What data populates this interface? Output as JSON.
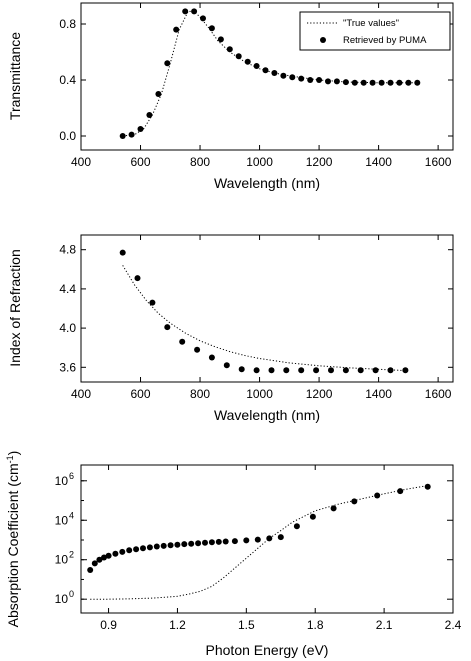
{
  "chart_data": [
    {
      "type": "scatter",
      "xlabel": "Wavelength (nm)",
      "ylabel": "Transmittance",
      "xlim": [
        400,
        1650
      ],
      "ylim": [
        -0.1,
        0.95
      ],
      "xticks": [
        400,
        600,
        800,
        1000,
        1200,
        1400,
        1600
      ],
      "yticks": [
        0.0,
        0.4,
        0.8
      ],
      "ytick_labels": [
        "0.0",
        "0.4",
        "0.8"
      ],
      "legend": {
        "placement": "top-right",
        "entries": [
          "\"True values\"",
          "Retrieved by PUMA"
        ]
      },
      "series": [
        {
          "name": "\"True values\"",
          "style": "dotted-line",
          "x": [
            540,
            580,
            610,
            640,
            670,
            700,
            730,
            760,
            780,
            800,
            830,
            860,
            900,
            950,
            1000,
            1050,
            1100,
            1200,
            1300,
            1400,
            1530
          ],
          "y": [
            0.0,
            0.01,
            0.05,
            0.15,
            0.3,
            0.52,
            0.76,
            0.89,
            0.89,
            0.85,
            0.77,
            0.68,
            0.6,
            0.53,
            0.48,
            0.45,
            0.43,
            0.4,
            0.385,
            0.38,
            0.38
          ]
        },
        {
          "name": "Retrieved by PUMA",
          "style": "filled-circles",
          "x": [
            540,
            570,
            600,
            630,
            660,
            690,
            720,
            750,
            780,
            810,
            840,
            870,
            900,
            930,
            960,
            990,
            1020,
            1050,
            1080,
            1110,
            1140,
            1170,
            1200,
            1230,
            1260,
            1290,
            1320,
            1350,
            1380,
            1410,
            1440,
            1470,
            1500,
            1530
          ],
          "y": [
            0.0,
            0.01,
            0.05,
            0.15,
            0.3,
            0.52,
            0.76,
            0.89,
            0.89,
            0.84,
            0.77,
            0.69,
            0.62,
            0.57,
            0.53,
            0.5,
            0.47,
            0.45,
            0.43,
            0.42,
            0.41,
            0.4,
            0.4,
            0.39,
            0.39,
            0.385,
            0.38,
            0.38,
            0.38,
            0.38,
            0.38,
            0.38,
            0.38,
            0.38
          ]
        }
      ]
    },
    {
      "type": "scatter",
      "xlabel": "Wavelength (nm)",
      "ylabel": "Index of Refraction",
      "xlim": [
        400,
        1650
      ],
      "ylim": [
        3.45,
        4.95
      ],
      "xticks": [
        400,
        600,
        800,
        1000,
        1200,
        1400,
        1600
      ],
      "yticks": [
        3.6,
        4.0,
        4.4,
        4.8
      ],
      "ytick_labels": [
        "3.6",
        "4.0",
        "4.4",
        "4.8"
      ],
      "series": [
        {
          "name": "\"True values\"",
          "style": "dotted-line",
          "x": [
            540,
            580,
            620,
            660,
            700,
            750,
            800,
            850,
            900,
            950,
            1000,
            1100,
            1200,
            1300,
            1400,
            1500
          ],
          "y": [
            4.64,
            4.44,
            4.28,
            4.15,
            4.05,
            3.95,
            3.87,
            3.81,
            3.76,
            3.72,
            3.69,
            3.645,
            3.615,
            3.595,
            3.58,
            3.565
          ]
        },
        {
          "name": "Retrieved by PUMA",
          "style": "filled-circles",
          "x": [
            540,
            590,
            640,
            690,
            740,
            790,
            840,
            890,
            940,
            990,
            1040,
            1090,
            1140,
            1190,
            1240,
            1290,
            1340,
            1390,
            1440,
            1490
          ],
          "y": [
            4.77,
            4.51,
            4.26,
            4.01,
            3.86,
            3.78,
            3.7,
            3.62,
            3.58,
            3.57,
            3.57,
            3.57,
            3.57,
            3.57,
            3.57,
            3.57,
            3.57,
            3.57,
            3.57,
            3.57
          ]
        }
      ]
    },
    {
      "type": "scatter",
      "xlabel": "Photon Energy (eV)",
      "ylabel": "Absorption Coefficient (cm",
      "ylabel_sup": "-1",
      "ylabel_end": ")",
      "yscale": "log",
      "xlim": [
        0.78,
        2.4
      ],
      "ylim_log10": [
        -0.7,
        6.8
      ],
      "xticks": [
        0.9,
        1.2,
        1.5,
        1.8,
        2.1,
        2.4
      ],
      "xtick_labels": [
        "0.9",
        "1.2",
        "1.5",
        "1.8",
        "2.1",
        "2.4"
      ],
      "yticks_log10": [
        0,
        2,
        4,
        6
      ],
      "ytick_bases": [
        "10",
        "10",
        "10",
        "10"
      ],
      "ytick_exps": [
        "0",
        "2",
        "4",
        "6"
      ],
      "series": [
        {
          "name": "\"True values\"",
          "style": "dotted-line",
          "x": [
            0.82,
            0.9,
            1.0,
            1.1,
            1.2,
            1.25,
            1.3,
            1.35,
            1.4,
            1.5,
            1.6,
            1.65,
            1.7,
            1.8,
            1.9,
            2.0,
            2.1,
            2.2,
            2.3
          ],
          "y": [
            1,
            1,
            1.05,
            1.15,
            1.4,
            1.8,
            2.5,
            4.5,
            12,
            120,
            1200,
            3000,
            8000,
            30000,
            65000,
            120000,
            220000,
            380000,
            600000
          ]
        },
        {
          "name": "Retrieved by PUMA",
          "style": "filled-circles",
          "x": [
            0.82,
            0.84,
            0.86,
            0.88,
            0.9,
            0.93,
            0.96,
            0.99,
            1.02,
            1.05,
            1.08,
            1.11,
            1.14,
            1.17,
            1.2,
            1.23,
            1.26,
            1.29,
            1.32,
            1.35,
            1.38,
            1.41,
            1.45,
            1.5,
            1.55,
            1.6,
            1.65,
            1.72,
            1.79,
            1.88,
            1.97,
            2.07,
            2.17,
            2.29
          ],
          "y": [
            30,
            65,
            100,
            130,
            160,
            200,
            250,
            300,
            340,
            380,
            420,
            470,
            500,
            540,
            580,
            620,
            650,
            680,
            720,
            760,
            800,
            840,
            880,
            950,
            1050,
            1200,
            1400,
            5000,
            15000,
            40000,
            90000,
            180000,
            300000,
            500000
          ]
        }
      ]
    }
  ]
}
